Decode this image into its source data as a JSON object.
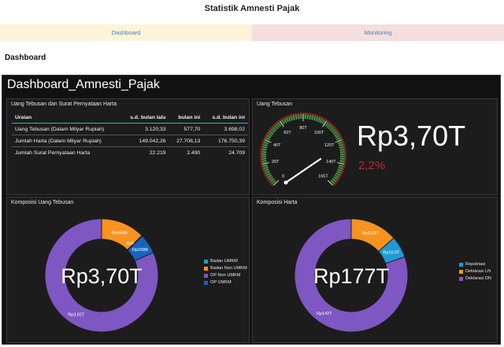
{
  "app": {
    "title": "Statistik Amnesti Pajak"
  },
  "tabs": [
    {
      "label": "Dashboard"
    },
    {
      "label": "Monitoring"
    }
  ],
  "section_title": "Dashboard",
  "dashboard": {
    "title": "Dashboard_Amnesti_Pajak",
    "summary": {
      "title": "Uang Tebusan dan Surat Pernyataan Harta",
      "headers": [
        "Uraian",
        "s.d. bulan lalu",
        "bulan ini",
        "s.d. bulan ini"
      ],
      "rows": [
        [
          "Uang Tebusan (Dalam Milyar Rupiah)",
          "3.120,33",
          "577,70",
          "3.698,02"
        ],
        [
          "Jumlah Harta (Dalam Milyar Rupiah)",
          "149.042,26",
          "27.708,13",
          "176.750,39"
        ],
        [
          "Jumlah Surat Pernyataan Harta",
          "22.219",
          "2.490",
          "24.709"
        ]
      ]
    },
    "gauge_panel": {
      "title": "Uang Tebusan",
      "ticks": [
        "0",
        "20T",
        "40T",
        "60T",
        "80T",
        "100T",
        "120T",
        "140T",
        "165T"
      ],
      "value_label": "Rp3,70T",
      "change_label": "2,2%",
      "gauge_value_T": 3.7,
      "gauge_max_T": 165
    },
    "composition_tebusan": {
      "title": "Komposisi Uang Tebusan",
      "center_label": "Rp3,70T",
      "slices": [
        {
          "name": "Badan UMKM",
          "label": "Rp6,75B",
          "value": 6.75,
          "color": "#1e9bd7"
        },
        {
          "name": "Badan Non UMKM",
          "label": "Rp466B",
          "value": 466,
          "color": "#f7931e"
        },
        {
          "name": "OP Non UMKM",
          "label": "Rp3,02T",
          "value": 3020,
          "color": "#7e57c2"
        },
        {
          "name": "OP UMKM",
          "label": "Rp208B",
          "value": 208,
          "color": "#1565c0"
        }
      ]
    },
    "composition_harta": {
      "title": "Komposisi Harta",
      "center_label": "Rp177T",
      "slices": [
        {
          "name": "Repatriasi",
          "label": "Rp10,9T",
          "value": 10.9,
          "color": "#1e9bd7"
        },
        {
          "name": "Deklarasi LN",
          "label": "Rp23,9T",
          "value": 23.9,
          "color": "#f7931e"
        },
        {
          "name": "Deklarasi DN",
          "label": "Rp142T",
          "value": 142,
          "color": "#7e57c2"
        }
      ]
    }
  }
}
